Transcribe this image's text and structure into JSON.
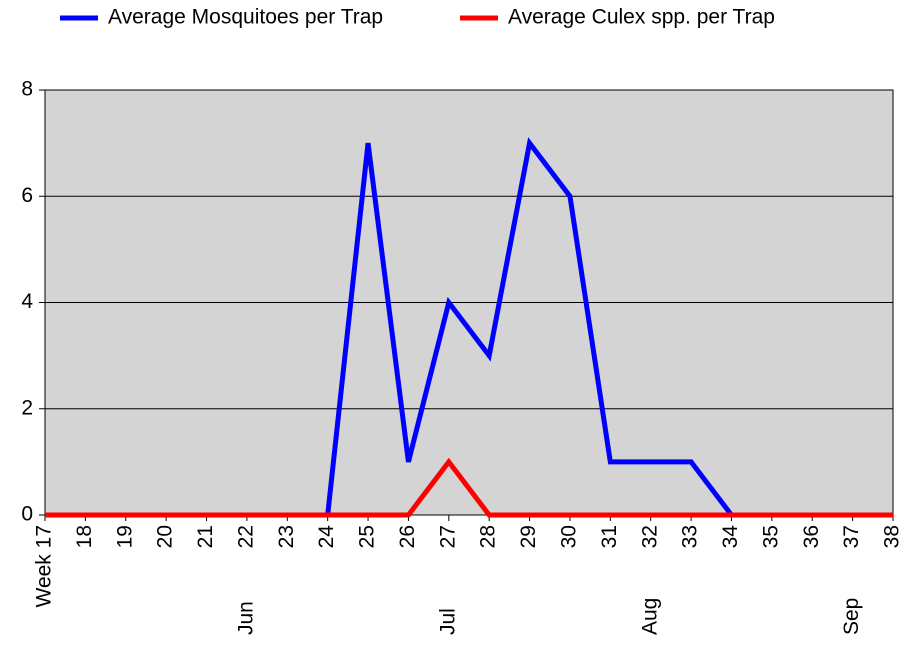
{
  "chart_data": {
    "type": "line",
    "categories": [
      "Week 17",
      "18",
      "19",
      "20",
      "21",
      "22",
      "23",
      "24",
      "25",
      "26",
      "27",
      "28",
      "29",
      "30",
      "31",
      "32",
      "33",
      "34",
      "35",
      "36",
      "37",
      "38"
    ],
    "months": [
      null,
      null,
      null,
      null,
      null,
      "Jun",
      null,
      null,
      null,
      null,
      "Jul",
      null,
      null,
      null,
      null,
      "Aug",
      null,
      null,
      null,
      null,
      "Sep",
      null
    ],
    "series": [
      {
        "name": "Average Mosquitoes per Trap",
        "color": "#0000ff",
        "values": [
          0,
          0,
          0,
          0,
          0,
          0,
          0,
          0,
          7,
          1,
          4,
          3,
          7,
          6,
          1,
          1,
          1,
          0,
          0,
          0,
          0,
          0
        ]
      },
      {
        "name": "Average Culex spp. per Trap",
        "color": "#ff0000",
        "values": [
          0,
          0,
          0,
          0,
          0,
          0,
          0,
          0,
          0,
          0,
          1,
          0,
          0,
          0,
          0,
          0,
          0,
          0,
          0,
          0,
          0,
          0
        ]
      }
    ],
    "ylim": [
      0,
      8
    ],
    "yticks": [
      0,
      2,
      4,
      6,
      8
    ],
    "grid": true,
    "legend": "top"
  }
}
